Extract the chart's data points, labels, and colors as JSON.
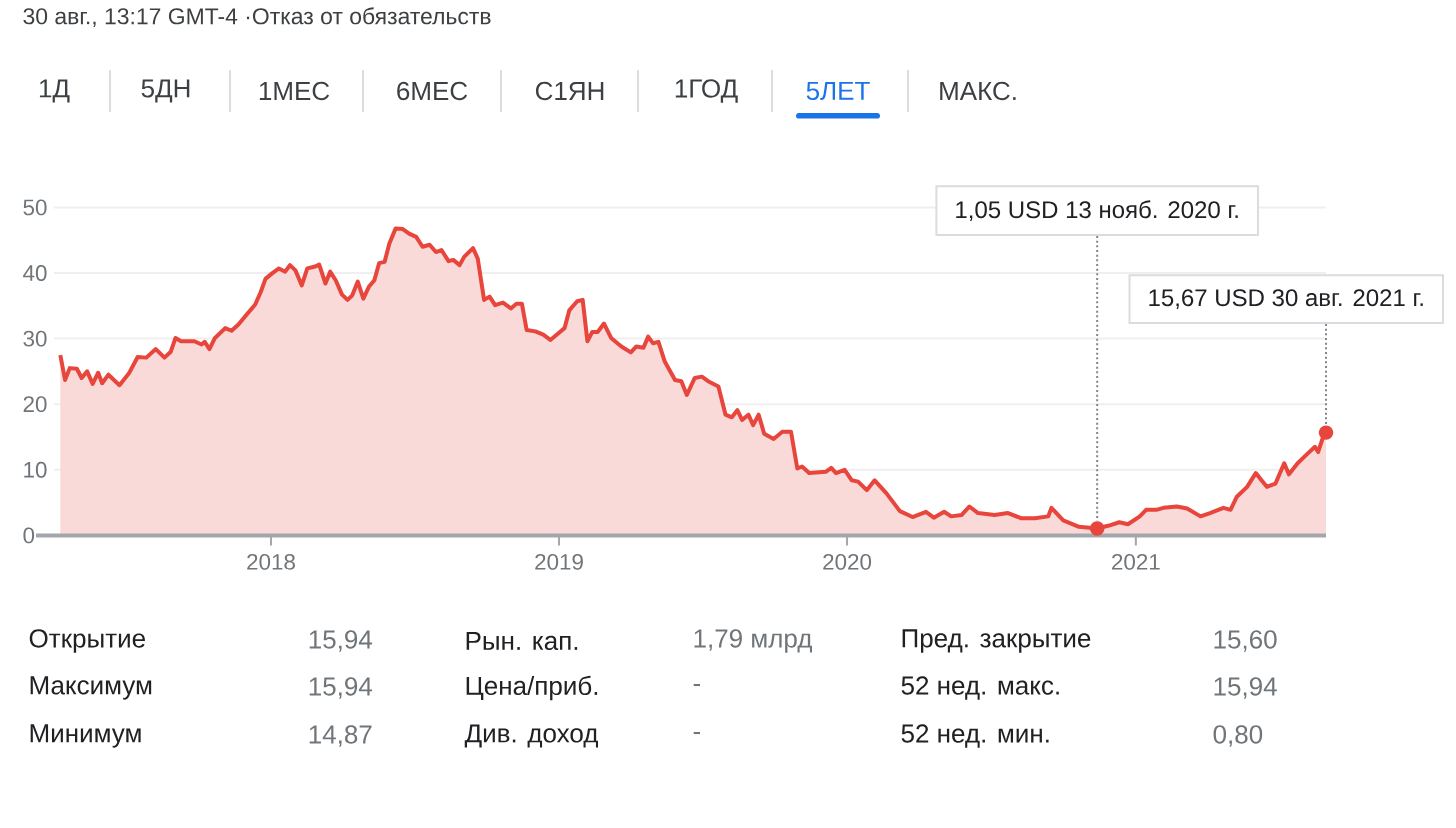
{
  "chart_data": {
    "type": "area",
    "color": "#e8453c",
    "x": [
      "2017-04-09",
      "2017-04-15",
      "2017-04-21",
      "2017-04-30",
      "2017-05-06",
      "2017-05-13",
      "2017-05-20",
      "2017-05-27",
      "2017-06-01",
      "2017-06-09",
      "2017-06-23",
      "2017-07-05",
      "2017-07-16",
      "2017-07-27",
      "2017-08-08",
      "2017-08-19",
      "2017-08-27",
      "2017-09-02",
      "2017-09-09",
      "2017-09-26",
      "2017-10-05",
      "2017-10-09",
      "2017-10-15",
      "2017-10-22",
      "2017-11-04",
      "2017-11-12",
      "2017-11-21",
      "2017-12-02",
      "2017-12-12",
      "2017-12-19",
      "2017-12-25",
      "2018-01-02",
      "2018-01-11",
      "2018-01-19",
      "2018-01-25",
      "2018-02-01",
      "2018-02-09",
      "2018-02-16",
      "2018-02-26",
      "2018-03-03",
      "2018-03-11",
      "2018-03-17",
      "2018-03-24",
      "2018-04-01",
      "2018-04-08",
      "2018-04-14",
      "2018-04-21",
      "2018-04-28",
      "2018-05-05",
      "2018-05-12",
      "2018-05-18",
      "2018-05-25",
      "2018-05-31",
      "2018-06-08",
      "2018-06-17",
      "2018-06-25",
      "2018-07-04",
      "2018-07-12",
      "2018-07-21",
      "2018-07-29",
      "2018-08-05",
      "2018-08-14",
      "2018-08-20",
      "2018-08-28",
      "2018-09-03",
      "2018-09-14",
      "2018-09-20",
      "2018-09-28",
      "2018-10-05",
      "2018-10-12",
      "2018-10-22",
      "2018-11-01",
      "2018-11-08",
      "2018-11-15",
      "2018-11-21",
      "2018-12-02",
      "2018-12-12",
      "2018-12-21",
      "2018-12-29",
      "2019-01-08",
      "2019-01-14",
      "2019-01-24",
      "2019-01-31",
      "2019-02-06",
      "2019-02-12",
      "2019-02-19",
      "2019-02-27",
      "2019-03-08",
      "2019-03-21",
      "2019-04-02",
      "2019-04-09",
      "2019-04-18",
      "2019-04-24",
      "2019-04-30",
      "2019-05-07",
      "2019-05-15",
      "2019-05-28",
      "2019-06-05",
      "2019-06-12",
      "2019-06-22",
      "2019-07-01",
      "2019-07-09",
      "2019-07-22",
      "2019-07-31",
      "2019-08-08",
      "2019-08-15",
      "2019-08-21",
      "2019-08-29",
      "2019-09-04",
      "2019-09-11",
      "2019-09-18",
      "2019-09-30",
      "2019-10-11",
      "2019-10-22",
      "2019-10-30",
      "2019-11-05",
      "2019-11-14",
      "2019-12-05",
      "2019-12-12",
      "2019-12-18",
      "2019-12-29",
      "2020-01-07",
      "2020-01-15",
      "2020-01-26",
      "2020-02-05",
      "2020-02-20",
      "2020-03-08",
      "2020-03-24",
      "2020-04-10",
      "2020-04-20",
      "2020-05-03",
      "2020-05-12",
      "2020-05-25",
      "2020-06-04",
      "2020-06-15",
      "2020-07-06",
      "2020-07-23",
      "2020-08-09",
      "2020-08-26",
      "2020-09-12",
      "2020-09-16",
      "2020-10-01",
      "2020-10-21",
      "2020-11-13",
      "2020-11-28",
      "2020-12-11",
      "2020-12-22",
      "2021-01-06",
      "2021-01-14",
      "2021-01-27",
      "2021-02-05",
      "2021-02-22",
      "2021-03-07",
      "2021-03-24",
      "2021-04-05",
      "2021-04-22",
      "2021-05-01",
      "2021-05-09",
      "2021-05-22",
      "2021-06-02",
      "2021-06-08",
      "2021-06-16",
      "2021-06-27",
      "2021-07-08",
      "2021-07-14",
      "2021-07-25",
      "2021-08-07",
      "2021-08-16",
      "2021-08-20",
      "2021-08-26",
      "2021-08-30"
    ],
    "values": [
      27.5,
      23.7,
      25.5,
      25.4,
      24.0,
      25.0,
      23.1,
      24.8,
      23.2,
      24.5,
      22.9,
      24.7,
      27.2,
      27.1,
      28.4,
      27.1,
      28.0,
      30.1,
      29.6,
      29.6,
      29.1,
      29.5,
      28.4,
      30.1,
      31.6,
      31.2,
      32.2,
      33.8,
      35.2,
      37.1,
      39.1,
      39.9,
      40.7,
      40.2,
      41.2,
      40.4,
      38.1,
      40.7,
      41.0,
      41.3,
      38.4,
      40.2,
      38.9,
      36.7,
      35.9,
      36.6,
      38.7,
      36.1,
      37.9,
      38.9,
      41.5,
      41.7,
      44.5,
      46.8,
      46.7,
      46.0,
      45.5,
      44.0,
      44.3,
      43.2,
      43.5,
      41.8,
      42.0,
      41.2,
      42.5,
      43.8,
      42.2,
      35.9,
      36.4,
      35.1,
      35.5,
      34.6,
      35.3,
      35.3,
      31.3,
      31.1,
      30.6,
      29.8,
      30.6,
      31.6,
      34.3,
      35.7,
      35.9,
      29.6,
      31.0,
      31.0,
      32.3,
      30.1,
      28.8,
      27.9,
      28.8,
      28.6,
      30.3,
      29.3,
      29.5,
      26.5,
      23.7,
      23.5,
      21.4,
      24.0,
      24.2,
      23.5,
      22.7,
      18.4,
      18.0,
      19.1,
      17.6,
      18.4,
      16.8,
      18.4,
      15.5,
      14.7,
      15.8,
      15.8,
      10.2,
      10.5,
      9.5,
      9.7,
      10.3,
      9.5,
      10.0,
      8.4,
      8.2,
      6.9,
      8.4,
      6.4,
      3.7,
      2.8,
      3.6,
      2.7,
      3.6,
      2.9,
      3.1,
      4.4,
      3.4,
      3.1,
      3.4,
      2.6,
      2.6,
      2.9,
      4.2,
      2.3,
      1.3,
      1.05,
      1.5,
      2.0,
      1.7,
      2.9,
      3.9,
      3.9,
      4.2,
      4.4,
      4.1,
      2.9,
      3.4,
      4.2,
      3.9,
      5.9,
      7.4,
      9.5,
      8.6,
      7.4,
      7.9,
      11.0,
      9.3,
      11.0,
      12.5,
      13.5,
      12.7,
      14.9,
      15.67
    ],
    "xlim": [
      "2017-04-01",
      "2021-08-30"
    ],
    "ylim": [
      0,
      50
    ],
    "xticks": [
      {
        "value": "2018-01-01",
        "label": "2018"
      },
      {
        "value": "2019-01-01",
        "label": "2019"
      },
      {
        "value": "2020-01-01",
        "label": "2020"
      },
      {
        "value": "2021-01-01",
        "label": "2021"
      }
    ],
    "yticks": [
      0,
      10,
      20,
      30,
      40,
      50
    ],
    "grid": "y",
    "annotations": [
      "30 авг., 13:17 GMT-4 ·Отказ от обязательств",
      "1Д",
      "5ДН",
      "1МЕС",
      "6МЕС",
      "С1ЯН",
      "1ГОД",
      "5ЛЕТ",
      "МАКС.",
      {
        "text": "1,05 USD  13 нояб. 2020 г.",
        "x": "2020-11-13",
        "y": 1.05
      },
      {
        "text": "15,67 USD  30 авг. 2021 г.",
        "x": "2021-08-30",
        "y": 15.67
      },
      "Открытие",
      "15,94",
      "Рын. кап.",
      "1,79 млрд",
      "Пред. закрытие",
      "15,60",
      "Максимум",
      "15,94",
      "Цена/приб.",
      "-",
      "52 нед. макс.",
      "15,94",
      "Минимум",
      "14,87",
      "Див. доход",
      "-",
      "52 нед. мин.",
      "0,80"
    ]
  }
}
